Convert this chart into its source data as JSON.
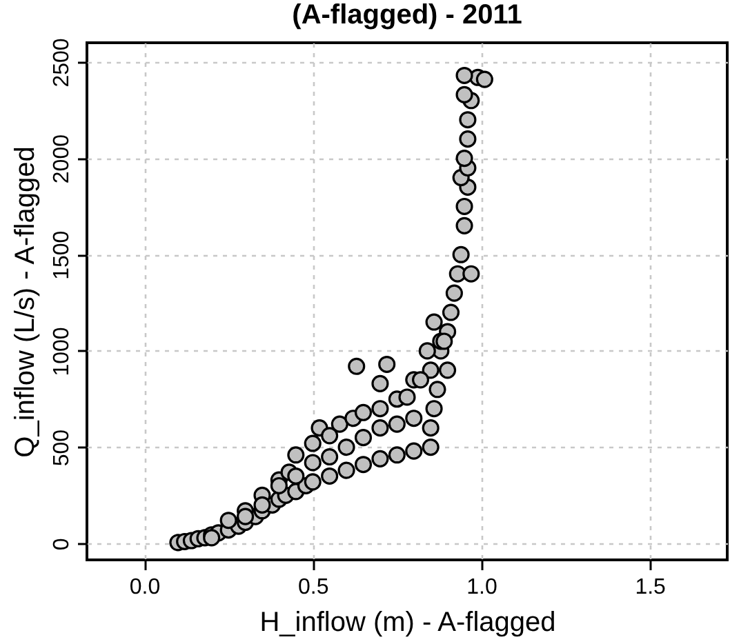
{
  "chart_data": {
    "type": "scatter",
    "title": "(A-flagged) - 2011",
    "xlabel": "H_inflow (m) - A-flagged",
    "ylabel": "Q_inflow (L/s) - A-flagged",
    "xlim": [
      -0.17,
      1.73
    ],
    "xticks": [
      {
        "value": 0,
        "label": "0.0"
      },
      0.5,
      {
        "value": 1,
        "label": "1.0"
      },
      1.5
    ],
    "ylim": [
      -85,
      2600
    ],
    "yticks": [
      0,
      500,
      1000,
      1500,
      2000,
      2500
    ],
    "grid": true,
    "marker": "circle",
    "series": [
      {
        "color": "#c0c0c0",
        "x": [
          0.1,
          0.12,
          0.14,
          0.16,
          0.18,
          0.2,
          0.22,
          0.25,
          0.28,
          0.3,
          0.33,
          0.35,
          0.38,
          0.4,
          0.42,
          0.45,
          0.48,
          0.5,
          0.55,
          0.6,
          0.65,
          0.7,
          0.75,
          0.8,
          0.85,
          0.25,
          0.3,
          0.35,
          0.4,
          0.43,
          0.45,
          0.5,
          0.52,
          0.55,
          0.58,
          0.62,
          0.65,
          0.7,
          0.75,
          0.78,
          0.72,
          0.63,
          0.7,
          0.8,
          0.85,
          0.4,
          0.5,
          0.55,
          0.6,
          0.65,
          0.7,
          0.75,
          0.8,
          0.35,
          0.3,
          0.45,
          0.2,
          0.85,
          0.86,
          0.87,
          0.88,
          0.9,
          0.88,
          0.91,
          0.92,
          0.93,
          0.94,
          0.95,
          0.95,
          0.96,
          0.94,
          0.96,
          0.95,
          0.96,
          0.96,
          0.97,
          0.95,
          0.99,
          1.01,
          0.95,
          0.97,
          0.9,
          0.89,
          0.86,
          0.84,
          0.82
        ],
        "values": [
          5,
          10,
          15,
          25,
          30,
          45,
          55,
          70,
          90,
          110,
          140,
          170,
          200,
          230,
          250,
          270,
          300,
          320,
          350,
          380,
          410,
          440,
          460,
          480,
          500,
          120,
          170,
          250,
          330,
          370,
          460,
          520,
          600,
          560,
          620,
          650,
          680,
          700,
          750,
          760,
          930,
          920,
          830,
          850,
          900,
          300,
          420,
          450,
          500,
          550,
          600,
          620,
          650,
          200,
          140,
          350,
          30,
          600,
          700,
          800,
          1000,
          1100,
          1050,
          1200,
          1300,
          1400,
          1500,
          1650,
          1750,
          1850,
          1900,
          1950,
          2000,
          2100,
          2200,
          2300,
          2330,
          2420,
          2410,
          2430,
          1400,
          900,
          1050,
          1150,
          1000,
          850
        ]
      }
    ]
  }
}
